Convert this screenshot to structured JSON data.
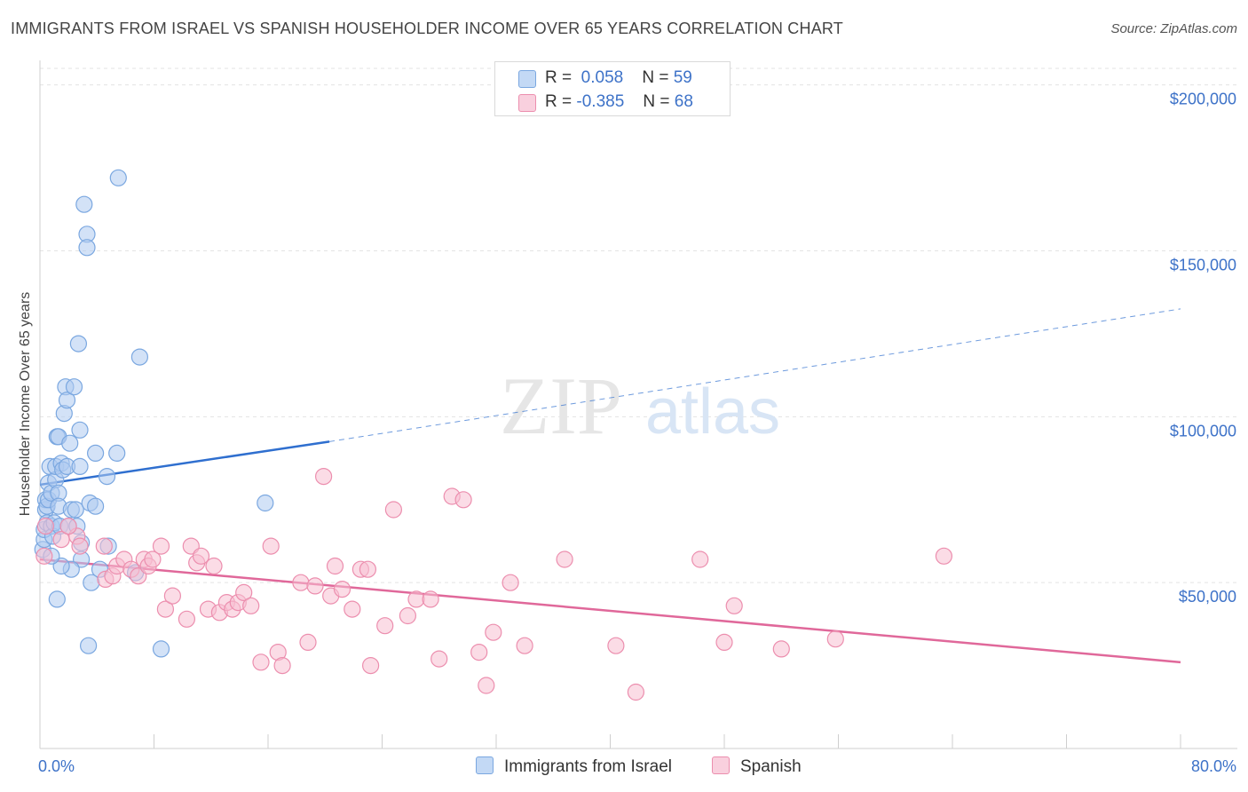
{
  "header": {
    "title": "IMMIGRANTS FROM ISRAEL VS SPANISH HOUSEHOLDER INCOME OVER 65 YEARS CORRELATION CHART",
    "source": "Source: ZipAtlas.com"
  },
  "watermark": {
    "zip": "ZIP",
    "atlas": "atlas"
  },
  "legend": {
    "rows": [
      {
        "r_label": "R =",
        "r_value": "0.058",
        "n_label": "N =",
        "n_value": "59"
      },
      {
        "r_label": "R =",
        "r_value": "-0.385",
        "n_label": "N =",
        "n_value": "68"
      }
    ]
  },
  "bottom_legend": {
    "items": [
      {
        "label": "Immigrants from Israel"
      },
      {
        "label": "Spanish"
      }
    ]
  },
  "colors": {
    "israel_fill": "#aecbf0",
    "israel_stroke": "#7aa7e0",
    "israel_line": "#2f6fcf",
    "spanish_fill": "#f7c0d2",
    "spanish_stroke": "#ec8eae",
    "spanish_line": "#e0689a",
    "tick_text": "#3d72c8"
  },
  "chart_data": {
    "type": "scatter",
    "title": "IMMIGRANTS FROM ISRAEL VS SPANISH HOUSEHOLDER INCOME OVER 65 YEARS CORRELATION CHART",
    "xlabel": "",
    "ylabel": "Householder Income Over 65 years",
    "xlim": [
      0,
      80
    ],
    "ylim": [
      0,
      205000
    ],
    "x_tick_labels": [
      "0.0%",
      "80.0%"
    ],
    "y_ticks": [
      50000,
      100000,
      150000,
      200000
    ],
    "y_tick_labels": [
      "$50,000",
      "$100,000",
      "$150,000",
      "$200,000"
    ],
    "grid": "horizontal dashed",
    "legend_position": "top-center",
    "series": [
      {
        "name": "Immigrants from Israel",
        "r": 0.058,
        "n": 59,
        "trend": {
          "x": [
            0,
            20.3
          ],
          "y": [
            79500,
            92500
          ],
          "dashed_extension": {
            "x": [
              20.3,
              80
            ],
            "y": [
              92500,
              132500
            ]
          }
        },
        "points": [
          [
            0.2,
            60000
          ],
          [
            0.3,
            63000
          ],
          [
            0.3,
            66000
          ],
          [
            0.4,
            72000
          ],
          [
            0.4,
            75000
          ],
          [
            0.5,
            68000
          ],
          [
            0.5,
            73000
          ],
          [
            0.6,
            75000
          ],
          [
            0.6,
            80000
          ],
          [
            0.7,
            85000
          ],
          [
            0.8,
            67000
          ],
          [
            0.8,
            77000
          ],
          [
            0.9,
            64000
          ],
          [
            1.0,
            68000
          ],
          [
            1.1,
            81000
          ],
          [
            1.1,
            85000
          ],
          [
            1.2,
            94000
          ],
          [
            1.3,
            94000
          ],
          [
            1.3,
            77000
          ],
          [
            1.3,
            73000
          ],
          [
            1.4,
            67000
          ],
          [
            1.5,
            86000
          ],
          [
            1.6,
            84000
          ],
          [
            1.7,
            101000
          ],
          [
            1.8,
            109000
          ],
          [
            1.9,
            105000
          ],
          [
            1.9,
            85000
          ],
          [
            2.0,
            67000
          ],
          [
            2.1,
            92000
          ],
          [
            2.2,
            72000
          ],
          [
            2.4,
            109000
          ],
          [
            2.5,
            72000
          ],
          [
            2.6,
            67000
          ],
          [
            2.7,
            122000
          ],
          [
            2.8,
            96000
          ],
          [
            2.8,
            85000
          ],
          [
            2.9,
            62000
          ],
          [
            2.9,
            57000
          ],
          [
            1.2,
            45000
          ],
          [
            3.1,
            164000
          ],
          [
            3.3,
            155000
          ],
          [
            3.3,
            151000
          ],
          [
            3.5,
            74000
          ],
          [
            3.6,
            50000
          ],
          [
            3.4,
            31000
          ],
          [
            3.9,
            89000
          ],
          [
            3.9,
            73000
          ],
          [
            4.2,
            54000
          ],
          [
            4.7,
            82000
          ],
          [
            4.8,
            61000
          ],
          [
            5.4,
            89000
          ],
          [
            5.5,
            172000
          ],
          [
            6.7,
            53000
          ],
          [
            7.0,
            118000
          ],
          [
            8.5,
            30000
          ],
          [
            2.2,
            54000
          ],
          [
            1.5,
            55000
          ],
          [
            15.8,
            74000
          ],
          [
            0.8,
            58000
          ]
        ]
      },
      {
        "name": "Spanish",
        "r": -0.385,
        "n": 68,
        "trend": {
          "x": [
            0,
            80
          ],
          "y": [
            57000,
            26000
          ]
        },
        "points": [
          [
            0.3,
            58000
          ],
          [
            1.5,
            63000
          ],
          [
            2.6,
            64000
          ],
          [
            2.8,
            61000
          ],
          [
            4.5,
            61000
          ],
          [
            4.6,
            51000
          ],
          [
            5.1,
            52000
          ],
          [
            5.4,
            55000
          ],
          [
            5.9,
            57000
          ],
          [
            6.4,
            54000
          ],
          [
            6.9,
            52000
          ],
          [
            7.3,
            57000
          ],
          [
            7.6,
            55000
          ],
          [
            7.9,
            57000
          ],
          [
            8.5,
            61000
          ],
          [
            8.8,
            42000
          ],
          [
            9.3,
            46000
          ],
          [
            10.3,
            39000
          ],
          [
            10.6,
            61000
          ],
          [
            11.0,
            56000
          ],
          [
            11.3,
            58000
          ],
          [
            11.8,
            42000
          ],
          [
            12.2,
            55000
          ],
          [
            12.6,
            41000
          ],
          [
            13.1,
            44000
          ],
          [
            13.5,
            42000
          ],
          [
            13.9,
            44000
          ],
          [
            14.3,
            47000
          ],
          [
            14.8,
            43000
          ],
          [
            15.5,
            26000
          ],
          [
            16.2,
            61000
          ],
          [
            16.7,
            29000
          ],
          [
            17.0,
            25000
          ],
          [
            18.3,
            50000
          ],
          [
            18.8,
            32000
          ],
          [
            19.3,
            49000
          ],
          [
            19.9,
            82000
          ],
          [
            20.4,
            46000
          ],
          [
            20.7,
            55000
          ],
          [
            21.2,
            48000
          ],
          [
            21.9,
            42000
          ],
          [
            22.5,
            54000
          ],
          [
            23.0,
            54000
          ],
          [
            23.2,
            25000
          ],
          [
            24.2,
            37000
          ],
          [
            24.8,
            72000
          ],
          [
            25.8,
            40000
          ],
          [
            26.4,
            45000
          ],
          [
            27.4,
            45000
          ],
          [
            28.0,
            27000
          ],
          [
            28.9,
            76000
          ],
          [
            29.7,
            75000
          ],
          [
            30.8,
            29000
          ],
          [
            31.3,
            19000
          ],
          [
            31.8,
            35000
          ],
          [
            33.0,
            50000
          ],
          [
            34.0,
            31000
          ],
          [
            36.8,
            57000
          ],
          [
            40.4,
            31000
          ],
          [
            41.8,
            17000
          ],
          [
            46.3,
            57000
          ],
          [
            48.0,
            32000
          ],
          [
            48.7,
            43000
          ],
          [
            52.0,
            30000
          ],
          [
            55.8,
            33000
          ],
          [
            63.4,
            58000
          ],
          [
            0.4,
            67000
          ],
          [
            2.0,
            67000
          ]
        ]
      }
    ]
  }
}
